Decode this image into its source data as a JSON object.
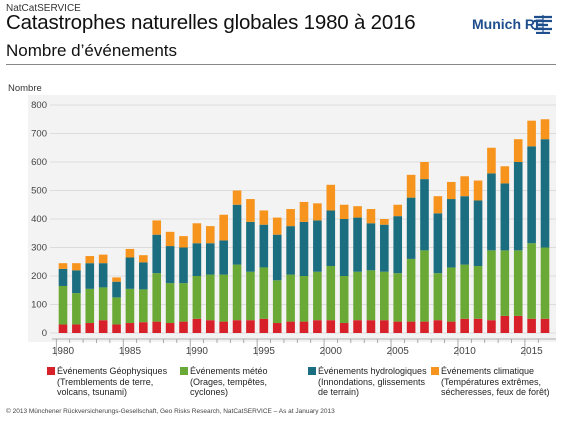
{
  "header": {
    "source_label": "NatCatSERVICE",
    "title": "Catastrophes naturelles globales 1980 à 2016",
    "brand": "Munich RE"
  },
  "subtitle": "Nombre d’événements",
  "footer": "© 2013 Münchener Rückversicherungs-Gesellschaft, Geo Risks Research, NatCatSERVICE – As at January 2013",
  "legend": [
    {
      "label": "Événements Géophysiques\n(Tremblements de terre,\nvolcans, tsunami)",
      "color": "#d8202b"
    },
    {
      "label": "Événements météo\n(Orages, tempêtes,\ncyclones)",
      "color": "#6aa935"
    },
    {
      "label": "Événements hydrologiques\n(Innondations, glissements\nde terrain)",
      "color": "#1b6d80"
    },
    {
      "label": "Événements climatique\n(Températures extrêmes,\nsécheresses, feux de forêt)",
      "color": "#f7941d"
    }
  ],
  "chart_data": {
    "type": "bar",
    "stacked": true,
    "ylabel": "Nombre",
    "ylim": [
      0,
      800
    ],
    "yticks": [
      0,
      100,
      200,
      300,
      400,
      500,
      600,
      700,
      800
    ],
    "xtick_labels": [
      "1980",
      "1985",
      "1990",
      "1995",
      "2000",
      "2005",
      "2010",
      "2015"
    ],
    "grid": true,
    "categories": [
      "1980",
      "1981",
      "1982",
      "1983",
      "1984",
      "1985",
      "1986",
      "1987",
      "1988",
      "1989",
      "1990",
      "1991",
      "1992",
      "1993",
      "1994",
      "1995",
      "1996",
      "1997",
      "1998",
      "1999",
      "2000",
      "2001",
      "2002",
      "2003",
      "2004",
      "2005",
      "2006",
      "2007",
      "2008",
      "2009",
      "2010",
      "2011",
      "2012",
      "2013",
      "2014",
      "2015",
      "2016"
    ],
    "series": [
      {
        "name": "Événements Géophysiques",
        "color": "#d8202b",
        "values": [
          30,
          30,
          35,
          45,
          30,
          35,
          38,
          40,
          35,
          40,
          50,
          45,
          40,
          45,
          45,
          50,
          35,
          40,
          40,
          45,
          45,
          35,
          45,
          45,
          45,
          40,
          40,
          40,
          45,
          40,
          50,
          50,
          45,
          60,
          60,
          50,
          50
        ]
      },
      {
        "name": "Événements météo",
        "color": "#6aa935",
        "values": [
          135,
          110,
          120,
          115,
          95,
          120,
          115,
          170,
          140,
          135,
          150,
          160,
          165,
          195,
          170,
          180,
          150,
          165,
          160,
          170,
          190,
          165,
          170,
          175,
          170,
          170,
          220,
          250,
          165,
          190,
          190,
          185,
          245,
          230,
          230,
          265,
          250
        ]
      },
      {
        "name": "Événements hydrologiques",
        "color": "#1b6d80",
        "values": [
          60,
          80,
          90,
          85,
          55,
          110,
          95,
          135,
          130,
          125,
          115,
          110,
          120,
          210,
          175,
          150,
          160,
          170,
          190,
          180,
          195,
          200,
          190,
          165,
          165,
          200,
          215,
          250,
          210,
          240,
          240,
          230,
          270,
          235,
          310,
          340,
          380
        ]
      },
      {
        "name": "Événements climatique",
        "color": "#f7941d",
        "values": [
          20,
          25,
          25,
          30,
          15,
          30,
          25,
          50,
          50,
          40,
          70,
          60,
          90,
          50,
          80,
          50,
          60,
          60,
          70,
          60,
          90,
          50,
          40,
          50,
          20,
          40,
          80,
          60,
          60,
          60,
          70,
          70,
          90,
          60,
          80,
          90,
          70
        ]
      }
    ]
  }
}
